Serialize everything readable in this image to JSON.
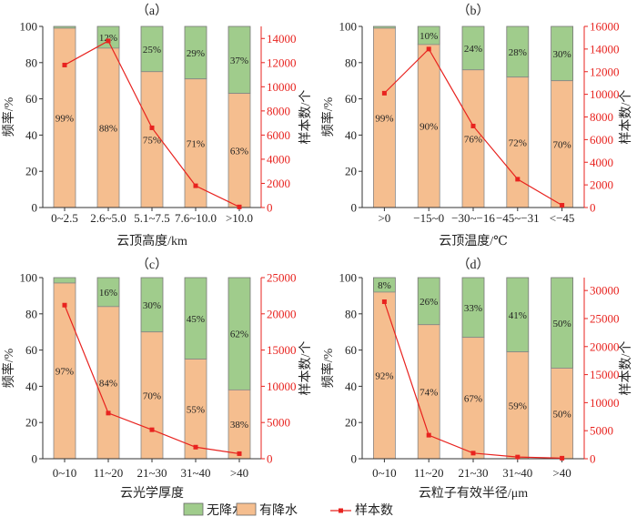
{
  "legend": {
    "no_precip": "无降水",
    "precip": "有降水",
    "samples": "样本数"
  },
  "colors": {
    "precip": "#F5BE8F",
    "no_precip": "#A0CC8C",
    "line": "#E8231F"
  },
  "chart_data": [
    {
      "type": "bar",
      "title": "（a）",
      "xlabel": "云顶高度/km",
      "ylabel": "频率/%",
      "y2label": "样本数/个",
      "categories": [
        "0~2.5",
        "2.6~5.0",
        "5.1~7.5",
        "7.6~10.0",
        ">10.0"
      ],
      "precip": [
        99,
        88,
        75,
        71,
        63
      ],
      "no_precip": [
        1,
        12,
        25,
        29,
        37
      ],
      "precip_labels": [
        "99%",
        "88%",
        "75%",
        "71%",
        "63%"
      ],
      "no_precip_labels": [
        "",
        "12%",
        "25%",
        "29%",
        "37%"
      ],
      "samples": [
        11800,
        13800,
        6600,
        1800,
        50
      ],
      "ylim": [
        0,
        100
      ],
      "yticks": [
        0,
        20,
        40,
        60,
        80,
        100
      ],
      "y2lim": [
        0,
        15000
      ],
      "y2ticks": [
        0,
        2000,
        4000,
        6000,
        8000,
        10000,
        12000,
        14000
      ]
    },
    {
      "type": "bar",
      "title": "（b）",
      "xlabel": "云顶温度/℃",
      "ylabel": "频率/%",
      "y2label": "样本数/个",
      "categories": [
        ">0",
        "−15~0",
        "−30~−16",
        "−45~−31",
        "<−45"
      ],
      "precip": [
        99,
        90,
        76,
        72,
        70
      ],
      "no_precip": [
        1,
        10,
        24,
        28,
        30
      ],
      "precip_labels": [
        "99%",
        "90%",
        "76%",
        "72%",
        "70%"
      ],
      "no_precip_labels": [
        "",
        "10%",
        "24%",
        "28%",
        "30%"
      ],
      "samples": [
        10100,
        14000,
        7200,
        2500,
        200
      ],
      "ylim": [
        0,
        100
      ],
      "yticks": [
        0,
        20,
        40,
        60,
        80,
        100
      ],
      "y2lim": [
        0,
        16000
      ],
      "y2ticks": [
        0,
        2000,
        4000,
        6000,
        8000,
        10000,
        12000,
        14000,
        16000
      ]
    },
    {
      "type": "bar",
      "title": "（c）",
      "xlabel": "云光学厚度",
      "ylabel": "频率/%",
      "y2label": "样本数/个",
      "categories": [
        "0~10",
        "11~20",
        "21~30",
        "31~40",
        ">40"
      ],
      "precip": [
        97,
        84,
        70,
        55,
        38
      ],
      "no_precip": [
        3,
        16,
        30,
        45,
        62
      ],
      "precip_labels": [
        "97%",
        "84%",
        "70%",
        "55%",
        "38%"
      ],
      "no_precip_labels": [
        "",
        "16%",
        "30%",
        "45%",
        "62%"
      ],
      "samples": [
        21200,
        6300,
        4000,
        1600,
        700
      ],
      "ylim": [
        0,
        100
      ],
      "yticks": [
        0,
        20,
        40,
        60,
        80,
        100
      ],
      "y2lim": [
        0,
        25000
      ],
      "y2ticks": [
        0,
        5000,
        10000,
        15000,
        20000,
        25000
      ]
    },
    {
      "type": "bar",
      "title": "（d）",
      "xlabel": "云粒子有效半径/μm",
      "ylabel": "频率/%",
      "y2label": "样本数/个",
      "categories": [
        "0~10",
        "11~20",
        "21~30",
        "31~40",
        ">40"
      ],
      "precip": [
        92,
        74,
        67,
        59,
        50
      ],
      "no_precip": [
        8,
        26,
        33,
        41,
        50
      ],
      "precip_labels": [
        "92%",
        "74%",
        "67%",
        "59%",
        "50%"
      ],
      "no_precip_labels": [
        "8%",
        "26%",
        "33%",
        "41%",
        "50%"
      ],
      "samples": [
        28000,
        4200,
        1000,
        300,
        100
      ],
      "ylim": [
        0,
        100
      ],
      "yticks": [
        0,
        20,
        40,
        60,
        80,
        100
      ],
      "y2lim": [
        0,
        32300
      ],
      "y2ticks": [
        0,
        5000,
        10000,
        15000,
        20000,
        25000,
        30000
      ]
    }
  ]
}
